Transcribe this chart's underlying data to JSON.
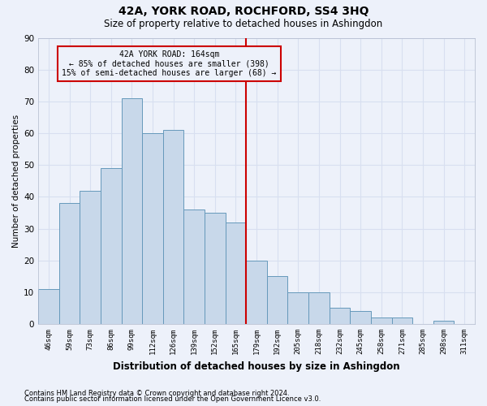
{
  "title": "42A, YORK ROAD, ROCHFORD, SS4 3HQ",
  "subtitle": "Size of property relative to detached houses in Ashingdon",
  "xlabel": "Distribution of detached houses by size in Ashingdon",
  "ylabel": "Number of detached properties",
  "footnote1": "Contains HM Land Registry data © Crown copyright and database right 2024.",
  "footnote2": "Contains public sector information licensed under the Open Government Licence v3.0.",
  "categories": [
    "46sqm",
    "59sqm",
    "73sqm",
    "86sqm",
    "99sqm",
    "112sqm",
    "126sqm",
    "139sqm",
    "152sqm",
    "165sqm",
    "179sqm",
    "192sqm",
    "205sqm",
    "218sqm",
    "232sqm",
    "245sqm",
    "258sqm",
    "271sqm",
    "285sqm",
    "298sqm",
    "311sqm"
  ],
  "values": [
    11,
    38,
    42,
    49,
    71,
    60,
    61,
    36,
    35,
    32,
    20,
    15,
    10,
    10,
    5,
    4,
    2,
    2,
    0,
    1,
    0
  ],
  "bar_color": "#c8d8ea",
  "bar_edge_color": "#6699bb",
  "annotation_line1": "42A YORK ROAD: 164sqm",
  "annotation_line2": "← 85% of detached houses are smaller (398)",
  "annotation_line3": "15% of semi-detached houses are larger (68) →",
  "annotation_box_color": "#cc0000",
  "vline_color": "#cc0000",
  "vline_x_index": 9.5,
  "background_color": "#edf1fa",
  "grid_color": "#d8dff0",
  "ylim": [
    0,
    90
  ],
  "yticks": [
    0,
    10,
    20,
    30,
    40,
    50,
    60,
    70,
    80,
    90
  ]
}
